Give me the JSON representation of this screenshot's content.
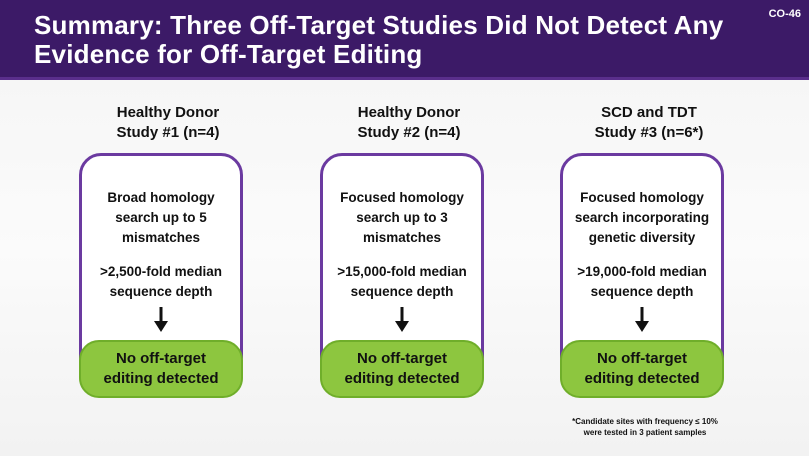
{
  "header": {
    "title_line1": "Summary: Three Off-Target Studies Did Not Detect Any",
    "title_line2": "Evidence for Off-Target Editing",
    "slide_code": "CO-46"
  },
  "studies": [
    {
      "heading_line1": "Healthy Donor",
      "heading_line2": "Study #1 (n=4)",
      "desc_lines": [
        "Broad homology",
        "search up to 5",
        "mismatches"
      ],
      "depth_lines": [
        ">2,500-fold median",
        "sequence depth"
      ],
      "result_lines": [
        "No off-target",
        "editing detected"
      ]
    },
    {
      "heading_line1": "Healthy Donor",
      "heading_line2": "Study #2 (n=4)",
      "desc_lines": [
        "Focused homology",
        "search up to 3",
        "mismatches"
      ],
      "depth_lines": [
        ">15,000-fold median",
        "sequence depth"
      ],
      "result_lines": [
        "No off-target",
        "editing detected"
      ]
    },
    {
      "heading_line1": "SCD and TDT",
      "heading_line2": "Study #3 (n=6*)",
      "desc_lines": [
        "Focused homology",
        "search incorporating",
        "genetic diversity"
      ],
      "depth_lines": [
        ">19,000-fold median",
        "sequence depth"
      ],
      "result_lines": [
        "No off-target",
        "editing detected"
      ]
    }
  ],
  "footnote": {
    "line1": "*Candidate sites with frequency ≤ 10%",
    "line2": "were tested in 3 patient samples"
  },
  "colors": {
    "header_bg": "#3c1a67",
    "box_border": "#6b3aa0",
    "result_green": "#8dc63f"
  },
  "icons": {
    "arrow": "arrow-down-icon"
  }
}
